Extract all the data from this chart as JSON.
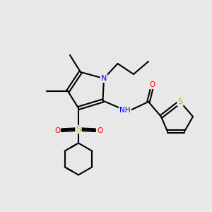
{
  "bg_color": "#e8e8e8",
  "fig_width": 3.0,
  "fig_height": 3.0,
  "dpi": 100,
  "lw": 1.5,
  "colors": {
    "C": "#000000",
    "N": "#0000FF",
    "O": "#FF0000",
    "S": "#CCAA00",
    "bond": "#000000"
  },
  "font_size": 7.5
}
